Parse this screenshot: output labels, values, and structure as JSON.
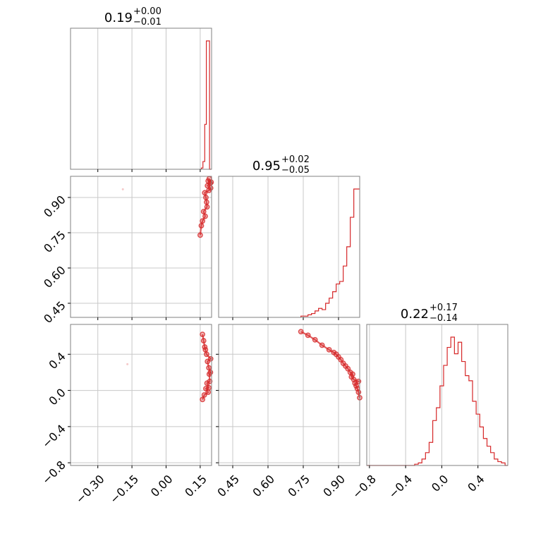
{
  "chart_data": {
    "type": "corner",
    "color": "#d62728",
    "grid": true,
    "titles": [
      {
        "value": "0.19",
        "plus": "+0.00",
        "minus": "−0.01"
      },
      {
        "value": "0.95",
        "plus": "+0.02",
        "minus": "−0.05"
      },
      {
        "value": "0.22",
        "plus": "+0.17",
        "minus": "−0.14"
      }
    ],
    "axes": {
      "p0": {
        "range": [
          -0.42,
          0.2
        ],
        "ticks": [
          -0.3,
          -0.15,
          0.0,
          0.15
        ],
        "tick_labels": [
          "−0.30",
          "−0.15",
          "0.00",
          "0.15"
        ]
      },
      "p1": {
        "range": [
          0.39,
          0.99
        ],
        "ticks": [
          0.45,
          0.6,
          0.75,
          0.9
        ],
        "tick_labels": [
          "0.45",
          "0.60",
          "0.75",
          "0.90"
        ]
      },
      "p2": {
        "range": [
          -0.83,
          0.73
        ],
        "ticks": [
          -0.8,
          -0.4,
          0.0,
          0.4
        ],
        "tick_labels": [
          "−0.8",
          "−0.4",
          "0.0",
          "0.4"
        ]
      }
    },
    "histograms": {
      "p0": {
        "bin_edges": [
          0.155,
          0.162,
          0.17,
          0.177,
          0.184,
          0.191,
          0.198
        ],
        "counts": [
          0.01,
          0.06,
          0.35,
          1.0,
          1.0,
          0.0
        ]
      },
      "p1": {
        "bin_edges": [
          0.74,
          0.755,
          0.77,
          0.785,
          0.8,
          0.815,
          0.83,
          0.845,
          0.86,
          0.875,
          0.89,
          0.905,
          0.92,
          0.935,
          0.95,
          0.965,
          0.98,
          0.99
        ],
        "counts": [
          0.01,
          0.01,
          0.02,
          0.03,
          0.05,
          0.07,
          0.06,
          0.11,
          0.15,
          0.2,
          0.26,
          0.28,
          0.4,
          0.55,
          0.78,
          1.0,
          1.0
        ]
      },
      "p2": {
        "bin_edges": [
          -0.83,
          -0.3,
          -0.26,
          -0.22,
          -0.18,
          -0.14,
          -0.1,
          -0.06,
          -0.02,
          0.02,
          0.06,
          0.1,
          0.14,
          0.18,
          0.22,
          0.26,
          0.3,
          0.34,
          0.38,
          0.42,
          0.46,
          0.5,
          0.54,
          0.58,
          0.62,
          0.66,
          0.7,
          0.73
        ],
        "counts": [
          0.0,
          0.01,
          0.02,
          0.05,
          0.1,
          0.18,
          0.35,
          0.45,
          0.62,
          0.78,
          0.92,
          1.0,
          0.87,
          0.96,
          0.81,
          0.7,
          0.66,
          0.5,
          0.4,
          0.3,
          0.21,
          0.15,
          0.1,
          0.05,
          0.03,
          0.02,
          0.0
        ]
      }
    },
    "joint_samples": {
      "p0_p1": [
        [
          0.17,
          0.92
        ],
        [
          0.175,
          0.9
        ],
        [
          0.178,
          0.88
        ],
        [
          0.18,
          0.86
        ],
        [
          0.182,
          0.95
        ],
        [
          0.185,
          0.97
        ],
        [
          0.19,
          0.98
        ],
        [
          0.194,
          0.96
        ],
        [
          0.196,
          0.94
        ],
        [
          0.198,
          0.965
        ],
        [
          0.16,
          0.8
        ],
        [
          0.165,
          0.84
        ],
        [
          0.15,
          0.74
        ],
        [
          0.155,
          0.78
        ],
        [
          -0.19,
          0.935
        ],
        [
          0.172,
          0.82
        ],
        [
          0.188,
          0.93
        ]
      ],
      "p0_p2": [
        [
          0.16,
          0.62
        ],
        [
          0.165,
          0.55
        ],
        [
          0.17,
          0.48
        ],
        [
          0.178,
          0.4
        ],
        [
          0.182,
          0.32
        ],
        [
          0.188,
          0.25
        ],
        [
          0.19,
          0.18
        ],
        [
          0.192,
          0.1
        ],
        [
          0.188,
          0.03
        ],
        [
          0.185,
          -0.02
        ],
        [
          0.18,
          0.08
        ],
        [
          0.175,
          0.02
        ],
        [
          0.168,
          -0.05
        ],
        [
          0.16,
          -0.1
        ],
        [
          0.195,
          0.2
        ],
        [
          0.196,
          0.35
        ],
        [
          -0.17,
          0.29
        ],
        [
          0.173,
          0.45
        ]
      ],
      "p1_p2": [
        [
          0.74,
          0.65
        ],
        [
          0.77,
          0.61
        ],
        [
          0.8,
          0.56
        ],
        [
          0.83,
          0.5
        ],
        [
          0.86,
          0.45
        ],
        [
          0.89,
          0.4
        ],
        [
          0.91,
          0.34
        ],
        [
          0.93,
          0.27
        ],
        [
          0.95,
          0.2
        ],
        [
          0.965,
          0.12
        ],
        [
          0.975,
          0.05
        ],
        [
          0.985,
          -0.02
        ],
        [
          0.99,
          -0.08
        ],
        [
          0.9,
          0.37
        ],
        [
          0.92,
          0.3
        ],
        [
          0.94,
          0.24
        ],
        [
          0.955,
          0.15
        ],
        [
          0.97,
          0.08
        ],
        [
          0.98,
          0.02
        ],
        [
          0.88,
          0.42
        ],
        [
          0.96,
          0.18
        ],
        [
          0.985,
          0.1
        ]
      ]
    }
  }
}
